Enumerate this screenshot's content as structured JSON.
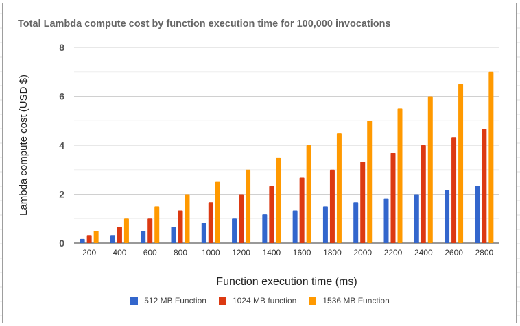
{
  "chart_data": {
    "type": "bar",
    "title": "Total Lambda compute cost by function execution time for 100,000 invocations",
    "xlabel": "Function execution time (ms)",
    "ylabel": "Lambda compute cost (USD $)",
    "categories": [
      "200",
      "400",
      "600",
      "800",
      "1000",
      "1200",
      "1400",
      "1600",
      "1800",
      "2000",
      "2200",
      "2400",
      "2600",
      "2800"
    ],
    "ylim": [
      0,
      8
    ],
    "yticks": [
      "0",
      "2",
      "4",
      "6",
      "8"
    ],
    "grid": true,
    "legend_position": "bottom",
    "series": [
      {
        "name": "512 MB Function",
        "color": "#3366cc",
        "values": [
          0.17,
          0.33,
          0.5,
          0.67,
          0.83,
          1.0,
          1.17,
          1.33,
          1.5,
          1.67,
          1.83,
          2.0,
          2.17,
          2.33
        ]
      },
      {
        "name": "1024 MB function",
        "color": "#dc3912",
        "values": [
          0.33,
          0.67,
          1.0,
          1.33,
          1.67,
          2.0,
          2.33,
          2.67,
          3.0,
          3.33,
          3.67,
          4.0,
          4.33,
          4.67
        ]
      },
      {
        "name": "1536 MB Function",
        "color": "#ff9900",
        "values": [
          0.5,
          1.0,
          1.5,
          2.0,
          2.5,
          3.0,
          3.5,
          4.0,
          4.5,
          5.0,
          5.5,
          6.0,
          6.5,
          7.0
        ]
      }
    ]
  }
}
